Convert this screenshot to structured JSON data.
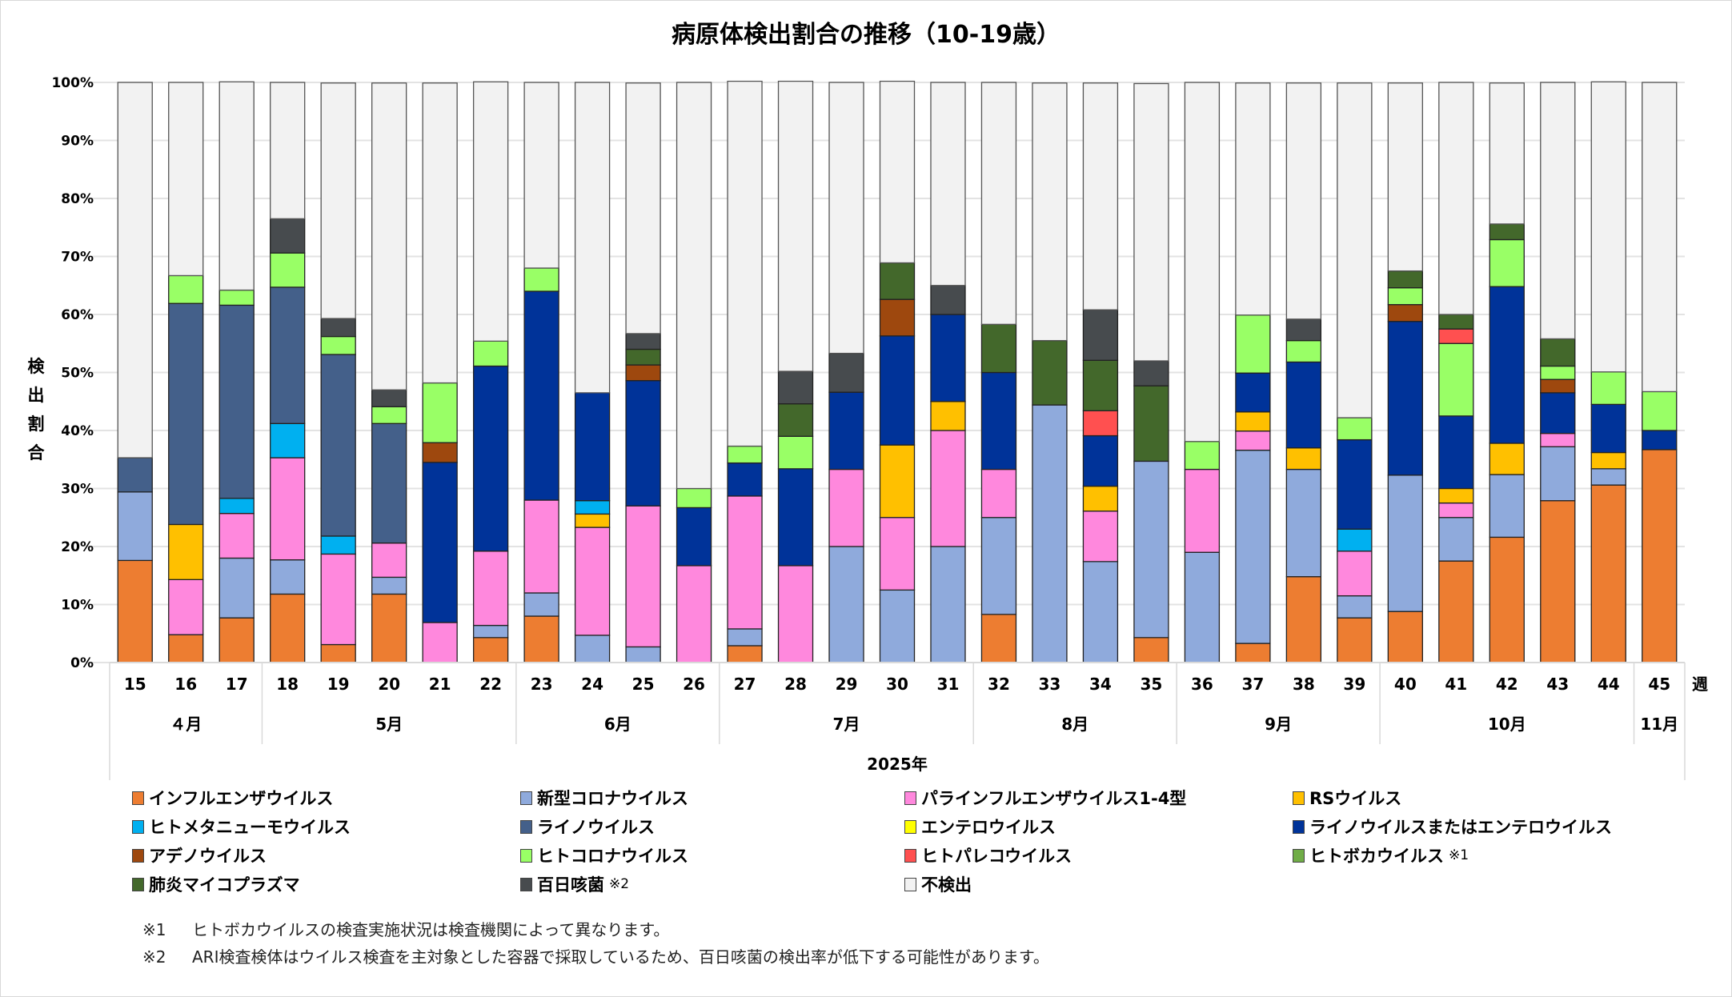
{
  "chart_data": {
    "type": "bar",
    "stacked": "percent",
    "title": "病原体検出割合の推移（10-19歳）",
    "ylabel": "検出割合",
    "xlabel": "2025年",
    "x_unit_label": "週",
    "ylim": [
      0,
      100
    ],
    "y_ticks": [
      "0%",
      "10%",
      "20%",
      "30%",
      "40%",
      "50%",
      "60%",
      "70%",
      "80%",
      "90%",
      "100%"
    ],
    "grid": true,
    "legend_position": "bottom",
    "categories": [
      "15",
      "16",
      "17",
      "18",
      "19",
      "20",
      "21",
      "22",
      "23",
      "24",
      "25",
      "26",
      "27",
      "28",
      "29",
      "30",
      "31",
      "32",
      "33",
      "34",
      "35",
      "36",
      "37",
      "38",
      "39",
      "40",
      "41",
      "42",
      "43",
      "44",
      "45"
    ],
    "months": [
      {
        "label": "４月",
        "span": 3
      },
      {
        "label": "5月",
        "span": 5
      },
      {
        "label": "6月",
        "span": 4
      },
      {
        "label": "7月",
        "span": 5
      },
      {
        "label": "8月",
        "span": 4
      },
      {
        "label": "9月",
        "span": 4
      },
      {
        "label": "10月",
        "span": 5
      },
      {
        "label": "11月",
        "span": 1
      }
    ],
    "series": [
      {
        "name": "インフルエンザウイルス",
        "color": "#ED7D31",
        "values": [
          17.6,
          4.8,
          7.7,
          11.8,
          3.1,
          11.8,
          0,
          4.3,
          8.0,
          0,
          0,
          0,
          2.9,
          0,
          0,
          0,
          0,
          8.3,
          0,
          0,
          4.3,
          0,
          3.3,
          14.8,
          7.7,
          8.8,
          17.5,
          21.6,
          27.9,
          30.6,
          36.7
        ]
      },
      {
        "name": "新型コロナウイルス",
        "color": "#8FAADC",
        "values": [
          11.8,
          0,
          10.3,
          5.9,
          0,
          2.9,
          0,
          2.1,
          4.0,
          4.7,
          2.7,
          0,
          2.9,
          0,
          20.0,
          12.5,
          20.0,
          16.7,
          44.4,
          17.4,
          30.4,
          19.0,
          33.3,
          18.5,
          3.8,
          23.5,
          7.5,
          10.8,
          9.3,
          2.8,
          0
        ]
      },
      {
        "name": "パラインフルエンザウイルス1-4型",
        "color": "#FF88DD",
        "values": [
          0,
          9.5,
          7.7,
          17.6,
          15.6,
          5.9,
          6.9,
          12.8,
          16.0,
          18.6,
          24.3,
          16.7,
          22.9,
          16.7,
          13.3,
          12.5,
          20.0,
          8.3,
          0,
          8.7,
          0,
          14.3,
          3.3,
          0,
          7.7,
          0,
          2.5,
          0,
          2.3,
          0,
          0
        ]
      },
      {
        "name": "RSウイルス",
        "color": "#FFC000",
        "values": [
          0,
          9.5,
          0,
          0,
          0,
          0,
          0,
          0,
          0,
          2.3,
          0,
          0,
          0,
          0,
          0,
          12.5,
          5.0,
          0,
          0,
          4.3,
          0,
          0,
          3.3,
          3.7,
          0,
          0,
          2.5,
          5.4,
          0,
          2.8,
          0
        ]
      },
      {
        "name": "ヒトメタニューモウイルス",
        "color": "#00B0F0",
        "values": [
          0,
          0,
          2.6,
          5.9,
          3.1,
          0,
          0,
          0,
          0,
          2.3,
          0,
          0,
          0,
          0,
          0,
          0,
          0,
          0,
          0,
          0,
          0,
          0,
          0,
          0,
          3.8,
          0,
          0,
          0,
          0,
          0,
          0
        ]
      },
      {
        "name": "ライノウイルス",
        "color": "#44608A",
        "values": [
          5.9,
          38.1,
          33.3,
          23.5,
          31.3,
          20.6,
          0,
          0,
          0,
          0,
          0,
          0,
          0,
          0,
          0,
          0,
          0,
          0,
          0,
          0,
          0,
          0,
          0,
          0,
          0,
          0,
          0,
          0,
          0,
          0,
          0
        ]
      },
      {
        "name": "エンテロウイルス",
        "color": "#FFFF00",
        "values": [
          0,
          0,
          0,
          0,
          0,
          0,
          0,
          0,
          0,
          0,
          0,
          0,
          0,
          0,
          0,
          0,
          0,
          0,
          0,
          0,
          0,
          0,
          0,
          0,
          0,
          0,
          0,
          0,
          0,
          0,
          0
        ]
      },
      {
        "name": "ライノウイルスまたはエンテロウイルス",
        "color": "#003399",
        "values": [
          0,
          0,
          0,
          0,
          0,
          0,
          27.6,
          31.9,
          36.0,
          18.6,
          21.6,
          10.0,
          5.7,
          16.7,
          13.3,
          18.8,
          15.0,
          16.7,
          0,
          8.7,
          0,
          0,
          6.7,
          14.8,
          15.4,
          26.5,
          12.5,
          27.0,
          7.0,
          8.3,
          3.3
        ]
      },
      {
        "name": "アデノウイルス",
        "color": "#9E480E",
        "values": [
          0,
          0,
          0,
          0,
          0,
          0,
          3.4,
          0,
          0,
          0,
          2.7,
          0,
          0,
          0,
          0,
          6.3,
          0,
          0,
          0,
          0,
          0,
          0,
          0,
          0,
          0,
          2.9,
          0,
          0,
          2.3,
          0,
          0
        ]
      },
      {
        "name": "ヒトコロナウイルス",
        "color": "#99FF66",
        "values": [
          0,
          4.8,
          2.6,
          5.9,
          3.1,
          2.9,
          10.3,
          4.3,
          4.0,
          0,
          0,
          3.3,
          2.9,
          5.6,
          0,
          0,
          0,
          0,
          0,
          0,
          0,
          4.8,
          10.0,
          3.7,
          3.8,
          2.9,
          12.5,
          8.1,
          2.3,
          5.6,
          6.7
        ]
      },
      {
        "name": "ヒトパレコウイルス",
        "color": "#FF5050",
        "values": [
          0,
          0,
          0,
          0,
          0,
          0,
          0,
          0,
          0,
          0,
          0,
          0,
          0,
          0,
          0,
          0,
          0,
          0,
          0,
          4.3,
          0,
          0,
          0,
          0,
          0,
          0,
          2.5,
          0,
          0,
          0,
          0
        ]
      },
      {
        "name": "ヒトボカウイルス",
        "note": "※1",
        "color": "#70AD47",
        "values": [
          0,
          0,
          0,
          0,
          0,
          0,
          0,
          0,
          0,
          0,
          0,
          0,
          0,
          0,
          0,
          0,
          0,
          0,
          0,
          0,
          0,
          0,
          0,
          0,
          0,
          0,
          0,
          0,
          0,
          0,
          0
        ]
      },
      {
        "name": "肺炎マイコプラズマ",
        "color": "#43682B",
        "values": [
          0,
          0,
          0,
          0,
          0,
          0,
          0,
          0,
          0,
          0,
          2.7,
          0,
          0,
          5.6,
          0,
          6.3,
          0,
          8.3,
          11.1,
          8.7,
          13.0,
          0,
          0,
          0,
          0,
          2.9,
          2.5,
          2.7,
          4.7,
          0,
          0
        ]
      },
      {
        "name": "百日咳菌",
        "note": "※2",
        "color": "#474B4E",
        "values": [
          0,
          0,
          0,
          5.9,
          3.1,
          2.9,
          0,
          0,
          0,
          0,
          2.7,
          0,
          0,
          5.6,
          6.7,
          0,
          5.0,
          0,
          0,
          8.7,
          4.3,
          0,
          0,
          3.7,
          0,
          0,
          0,
          0,
          0,
          0,
          0
        ]
      },
      {
        "name": "不検出",
        "color": "#F2F2F2",
        "values": [
          64.7,
          33.3,
          35.9,
          23.5,
          40.6,
          52.9,
          51.7,
          44.7,
          32.0,
          53.5,
          43.2,
          70.0,
          62.9,
          50.0,
          46.7,
          31.3,
          35.0,
          41.7,
          44.4,
          39.1,
          47.8,
          61.9,
          40.0,
          40.7,
          57.7,
          32.4,
          40.0,
          24.3,
          44.2,
          50.0,
          53.3
        ]
      }
    ]
  },
  "legend": {
    "rows": [
      [
        "インフルエンザウイルス",
        "新型コロナウイルス",
        "パラインフルエンザウイルス1-4型",
        "RSウイルス"
      ],
      [
        "ヒトメタニューモウイルス",
        "ライノウイルス",
        "エンテロウイルス",
        "ライノウイルスまたはエンテロウイルス"
      ],
      [
        "アデノウイルス",
        "ヒトコロナウイルス",
        "ヒトパレコウイルス",
        "ヒトボカウイルス"
      ],
      [
        "肺炎マイコプラズマ",
        "百日咳菌",
        "不検出"
      ]
    ]
  },
  "notes": [
    {
      "mark": "※1",
      "text": "ヒトボカウイルスの検査実施状況は検査機関によって異なります。"
    },
    {
      "mark": "※2",
      "text": "ARI検査検体はウイルス検査を主対象とした容器で採取しているため、百日咳菌の検出率が低下する可能性があります。"
    }
  ]
}
